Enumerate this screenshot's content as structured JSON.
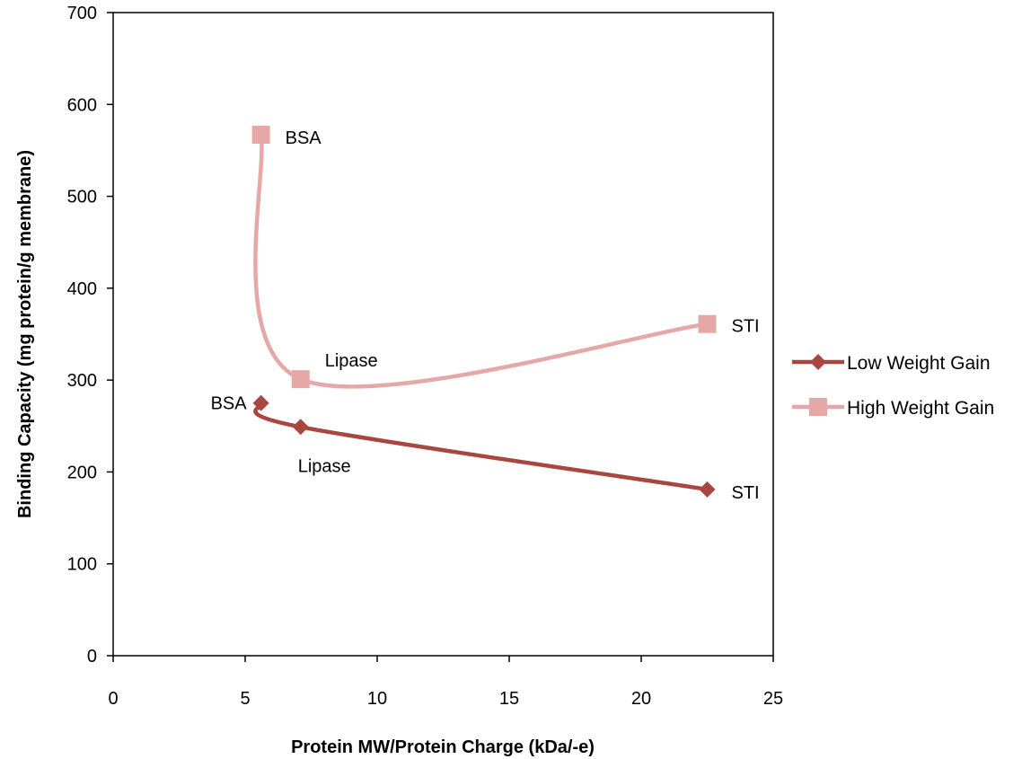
{
  "chart_data": {
    "type": "scatter",
    "title": "",
    "xlabel": "Protein MW/Protein Charge (kDa/-e)",
    "ylabel": "Binding Capacity (mg protein/g membrane)",
    "xlim": [
      0,
      25
    ],
    "ylim": [
      0,
      700
    ],
    "xticks": [
      0,
      5,
      10,
      15,
      20,
      25
    ],
    "yticks": [
      0,
      100,
      200,
      300,
      400,
      500,
      600,
      700
    ],
    "grid": false,
    "legend_position": "right",
    "lines": "smoothed",
    "series": [
      {
        "name": "Low Weight Gain",
        "marker": "diamond",
        "color": "#a84640",
        "points": [
          {
            "x": 5.6,
            "y": 275,
            "label": "BSA"
          },
          {
            "x": 7.1,
            "y": 249,
            "label": "Lipase"
          },
          {
            "x": 22.5,
            "y": 181,
            "label": "STI"
          }
        ]
      },
      {
        "name": "High Weight Gain",
        "marker": "square",
        "color": "#e6a8a6",
        "points": [
          {
            "x": 5.6,
            "y": 567,
            "label": "BSA"
          },
          {
            "x": 7.1,
            "y": 301,
            "label": "Lipase"
          },
          {
            "x": 22.5,
            "y": 361,
            "label": "STI"
          }
        ]
      }
    ]
  }
}
